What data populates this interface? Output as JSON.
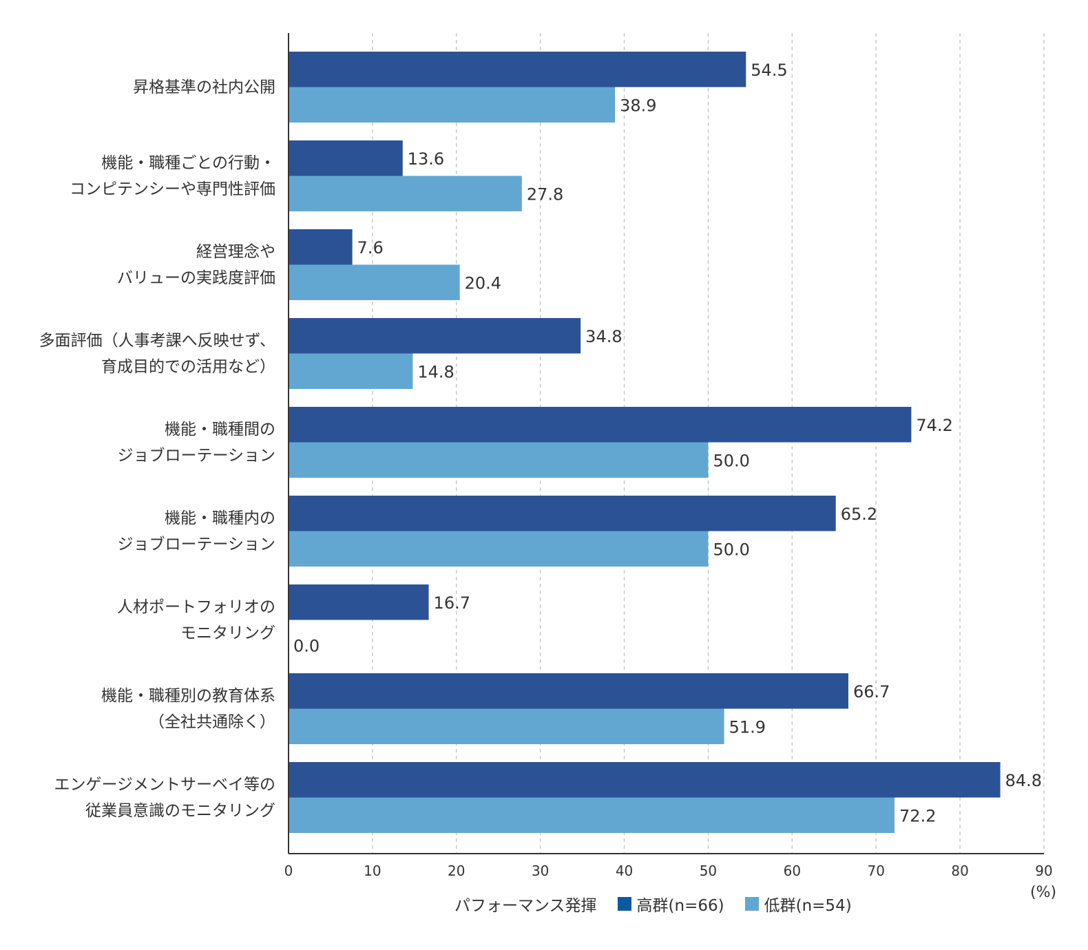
{
  "chart_data": {
    "type": "bar",
    "orientation": "horizontal",
    "title": "",
    "categories": [
      [
        "昇格基準の社内公開"
      ],
      [
        "機能・職種ごとの行動・",
        "コンピテンシーや専門性評価"
      ],
      [
        "経営理念や",
        "バリューの実践度評価"
      ],
      [
        "多面評価（人事考課へ反映せず、",
        "育成目的での活用など）"
      ],
      [
        "機能・職種間の",
        "ジョブローテーション"
      ],
      [
        "機能・職種内の",
        "ジョブローテーション"
      ],
      [
        "人材ポートフォリオの",
        "モニタリング"
      ],
      [
        "機能・職種別の教育体系",
        "（全社共通除く）"
      ],
      [
        "エンゲージメントサーベイ等の",
        "従業員意識のモニタリング"
      ]
    ],
    "series": [
      {
        "name": "高群(n=66)",
        "color": "#2c5296",
        "legend_color": "#0b5aa0",
        "values": [
          54.5,
          13.6,
          7.6,
          34.8,
          74.2,
          65.2,
          16.7,
          66.7,
          84.8
        ],
        "labels": [
          "54.5",
          "13.6",
          "7.6",
          "34.8",
          "74.2",
          "65.2",
          "16.7",
          "66.7",
          "84.8"
        ]
      },
      {
        "name": "低群(n=54)",
        "color": "#62a7d2",
        "legend_color": "#62a7d2",
        "values": [
          38.9,
          27.8,
          20.4,
          14.8,
          50.0,
          50.0,
          0.0,
          51.9,
          72.2
        ],
        "labels": [
          "38.9",
          "27.8",
          "20.4",
          "14.8",
          "50.0",
          "50.0",
          "0.0",
          "51.9",
          "72.2"
        ]
      }
    ],
    "xlim": [
      0,
      90
    ],
    "xticks": [
      "0",
      "10",
      "20",
      "30",
      "40",
      "50",
      "60",
      "70",
      "80",
      "90"
    ],
    "xlabel": "",
    "unit_label": "(%)",
    "grid": "vertical dashed",
    "legend": {
      "title": "パフォーマンス発揮",
      "placement": "bottom-center"
    }
  }
}
